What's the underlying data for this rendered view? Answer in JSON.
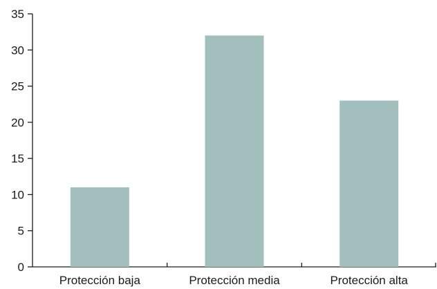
{
  "chart_data": {
    "type": "bar",
    "title": "",
    "xlabel": "",
    "ylabel": "",
    "categories": [
      "Protección baja",
      "Protección media",
      "Protección alta"
    ],
    "values": [
      11,
      32,
      23
    ],
    "ylim": [
      0,
      35
    ],
    "yticks": [
      0,
      5,
      10,
      15,
      20,
      25,
      30,
      35
    ],
    "grid": false,
    "bar_color": "#a3bfbd"
  }
}
